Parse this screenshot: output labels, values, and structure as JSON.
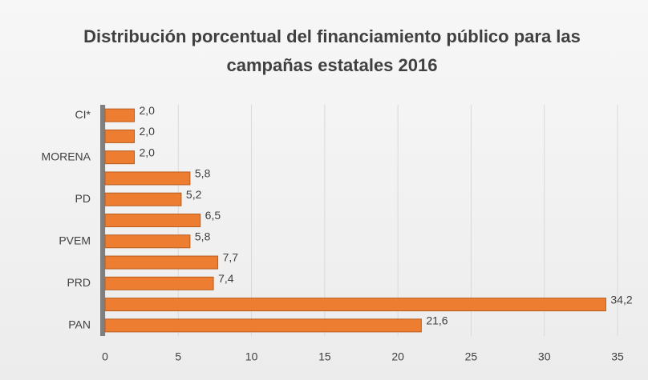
{
  "chart_data": {
    "type": "bar",
    "orientation": "horizontal",
    "title": "Distribución porcentual del financiamiento público para las campañas estatales 2016",
    "categories": [
      "CI*",
      null,
      "MORENA",
      null,
      "PD",
      null,
      "PVEM",
      null,
      "PRD",
      null,
      "PAN"
    ],
    "values": [
      2.0,
      2.0,
      2.0,
      5.8,
      5.2,
      6.5,
      5.8,
      7.7,
      7.4,
      34.2,
      21.6
    ],
    "value_labels": [
      "2,0",
      "2,0",
      "2,0",
      "5,8",
      "5,2",
      "6,5",
      "5,8",
      "7,7",
      "7,4",
      "34,2",
      "21,6"
    ],
    "color": "#ed7d31",
    "xlim": [
      0,
      35
    ],
    "xticks": [
      0,
      5,
      10,
      15,
      20,
      25,
      30,
      35
    ],
    "grid": true
  }
}
